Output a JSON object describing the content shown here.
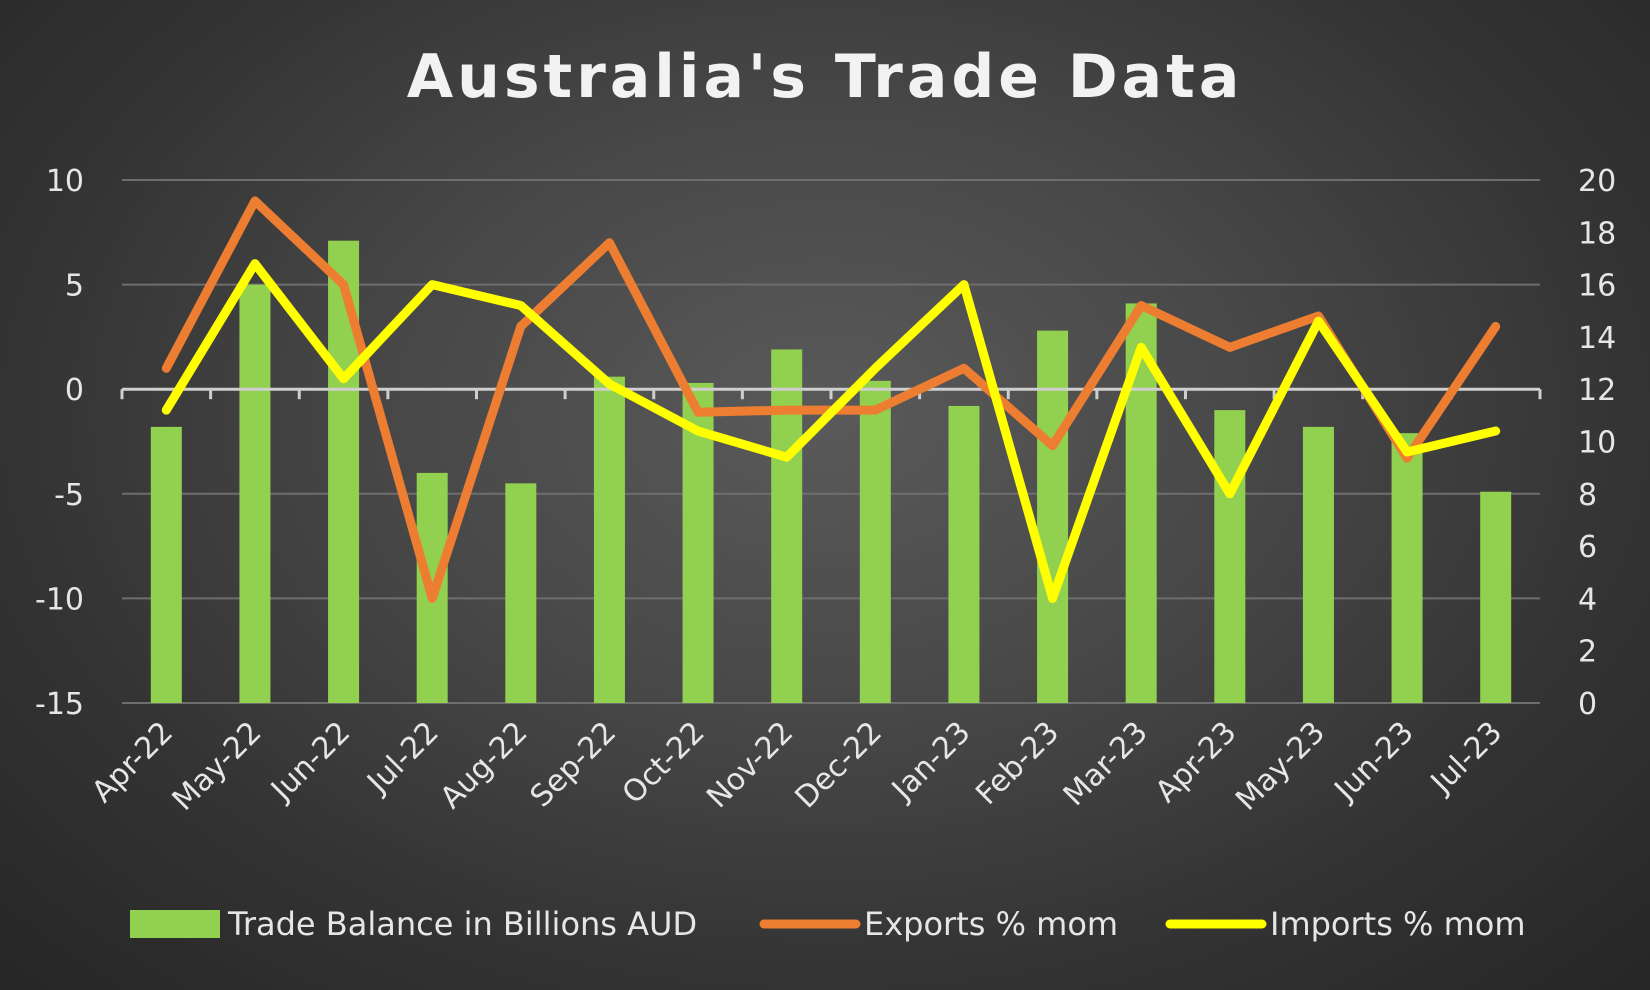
{
  "chart_data": {
    "type": "bar",
    "title": "Australia's Trade Data",
    "categories": [
      "Apr-22",
      "May-22",
      "Jun-22",
      "Jul-22",
      "Aug-22",
      "Sep-22",
      "Oct-22",
      "Nov-22",
      "Dec-22",
      "Jan-23",
      "Feb-23",
      "Mar-23",
      "Apr-23",
      "May-23",
      "Jun-23",
      "Jul-23"
    ],
    "left_axis": {
      "ylim": [
        -15,
        10
      ],
      "ticks": [
        10,
        5,
        0,
        -5,
        -10,
        -15
      ]
    },
    "right_axis": {
      "ylim": [
        0,
        20
      ],
      "ticks": [
        20,
        18,
        16,
        14,
        12,
        10,
        8,
        6,
        4,
        2,
        0
      ]
    },
    "grid": true,
    "legend_position": "bottom",
    "series": [
      {
        "name": "Trade Balance in Billions AUD",
        "type": "bar",
        "axis": "left",
        "color": "#92d050",
        "values": [
          -1.8,
          5.0,
          7.1,
          -4.0,
          -4.5,
          0.6,
          0.3,
          1.9,
          0.4,
          -0.8,
          2.8,
          4.1,
          -1.0,
          -1.8,
          -2.1,
          -4.9
        ]
      },
      {
        "name": "Exports % mom",
        "type": "line",
        "axis": "left",
        "color": "#ed7d31",
        "values": [
          1.0,
          9.0,
          5.0,
          -10.0,
          3.0,
          7.0,
          -1.1,
          -1.0,
          -1.0,
          1.0,
          -2.7,
          4.0,
          2.0,
          3.5,
          -3.3,
          3.0
        ]
      },
      {
        "name": "Imports % mom",
        "type": "line",
        "axis": "right",
        "color": "#ffff00",
        "values": [
          11.2,
          16.8,
          12.4,
          16.0,
          15.2,
          12.2,
          10.4,
          9.4,
          12.8,
          16.0,
          4.0,
          13.6,
          8.0,
          14.6,
          9.6,
          10.4
        ]
      }
    ]
  }
}
